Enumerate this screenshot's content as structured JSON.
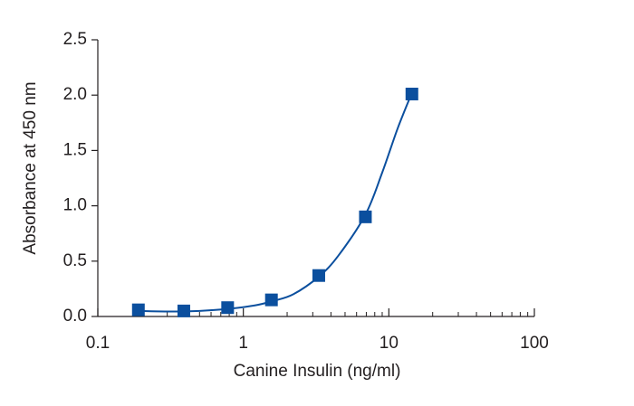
{
  "chart_data": {
    "type": "scatter",
    "xlabel": "Canine Insulin (ng/ml)",
    "ylabel": "Absorbance at 450 nm",
    "x": [
      0.19,
      0.39,
      0.78,
      1.56,
      3.3,
      6.9,
      14.4
    ],
    "values": [
      0.06,
      0.05,
      0.08,
      0.15,
      0.37,
      0.9,
      2.01
    ],
    "color": "#0b4f9e",
    "curve": {
      "x": [
        0.19,
        0.3,
        0.5,
        0.8,
        1.2,
        1.6,
        2.2,
        3.3,
        4.5,
        6.9,
        9,
        11.5,
        14.4
      ],
      "values": [
        0.05,
        0.045,
        0.05,
        0.07,
        0.1,
        0.14,
        0.2,
        0.36,
        0.55,
        0.92,
        1.3,
        1.7,
        2.02
      ]
    },
    "xscale": "log",
    "xlim": [
      0.1,
      100
    ],
    "xticks": [
      0.1,
      1,
      10,
      100
    ],
    "xminorticks": [
      0.2,
      0.3,
      0.4,
      0.5,
      0.6,
      0.7,
      0.8,
      0.9,
      2,
      3,
      4,
      5,
      6,
      7,
      8,
      9,
      20,
      30,
      40,
      50,
      60,
      70,
      80,
      90
    ],
    "ylim": [
      0,
      2.5
    ],
    "yticks": [
      {
        "value": 0,
        "label": "0.0"
      },
      0.5,
      {
        "value": 1,
        "label": "1.0"
      },
      1.5,
      {
        "value": 2,
        "label": "2.0"
      },
      2.5
    ]
  }
}
